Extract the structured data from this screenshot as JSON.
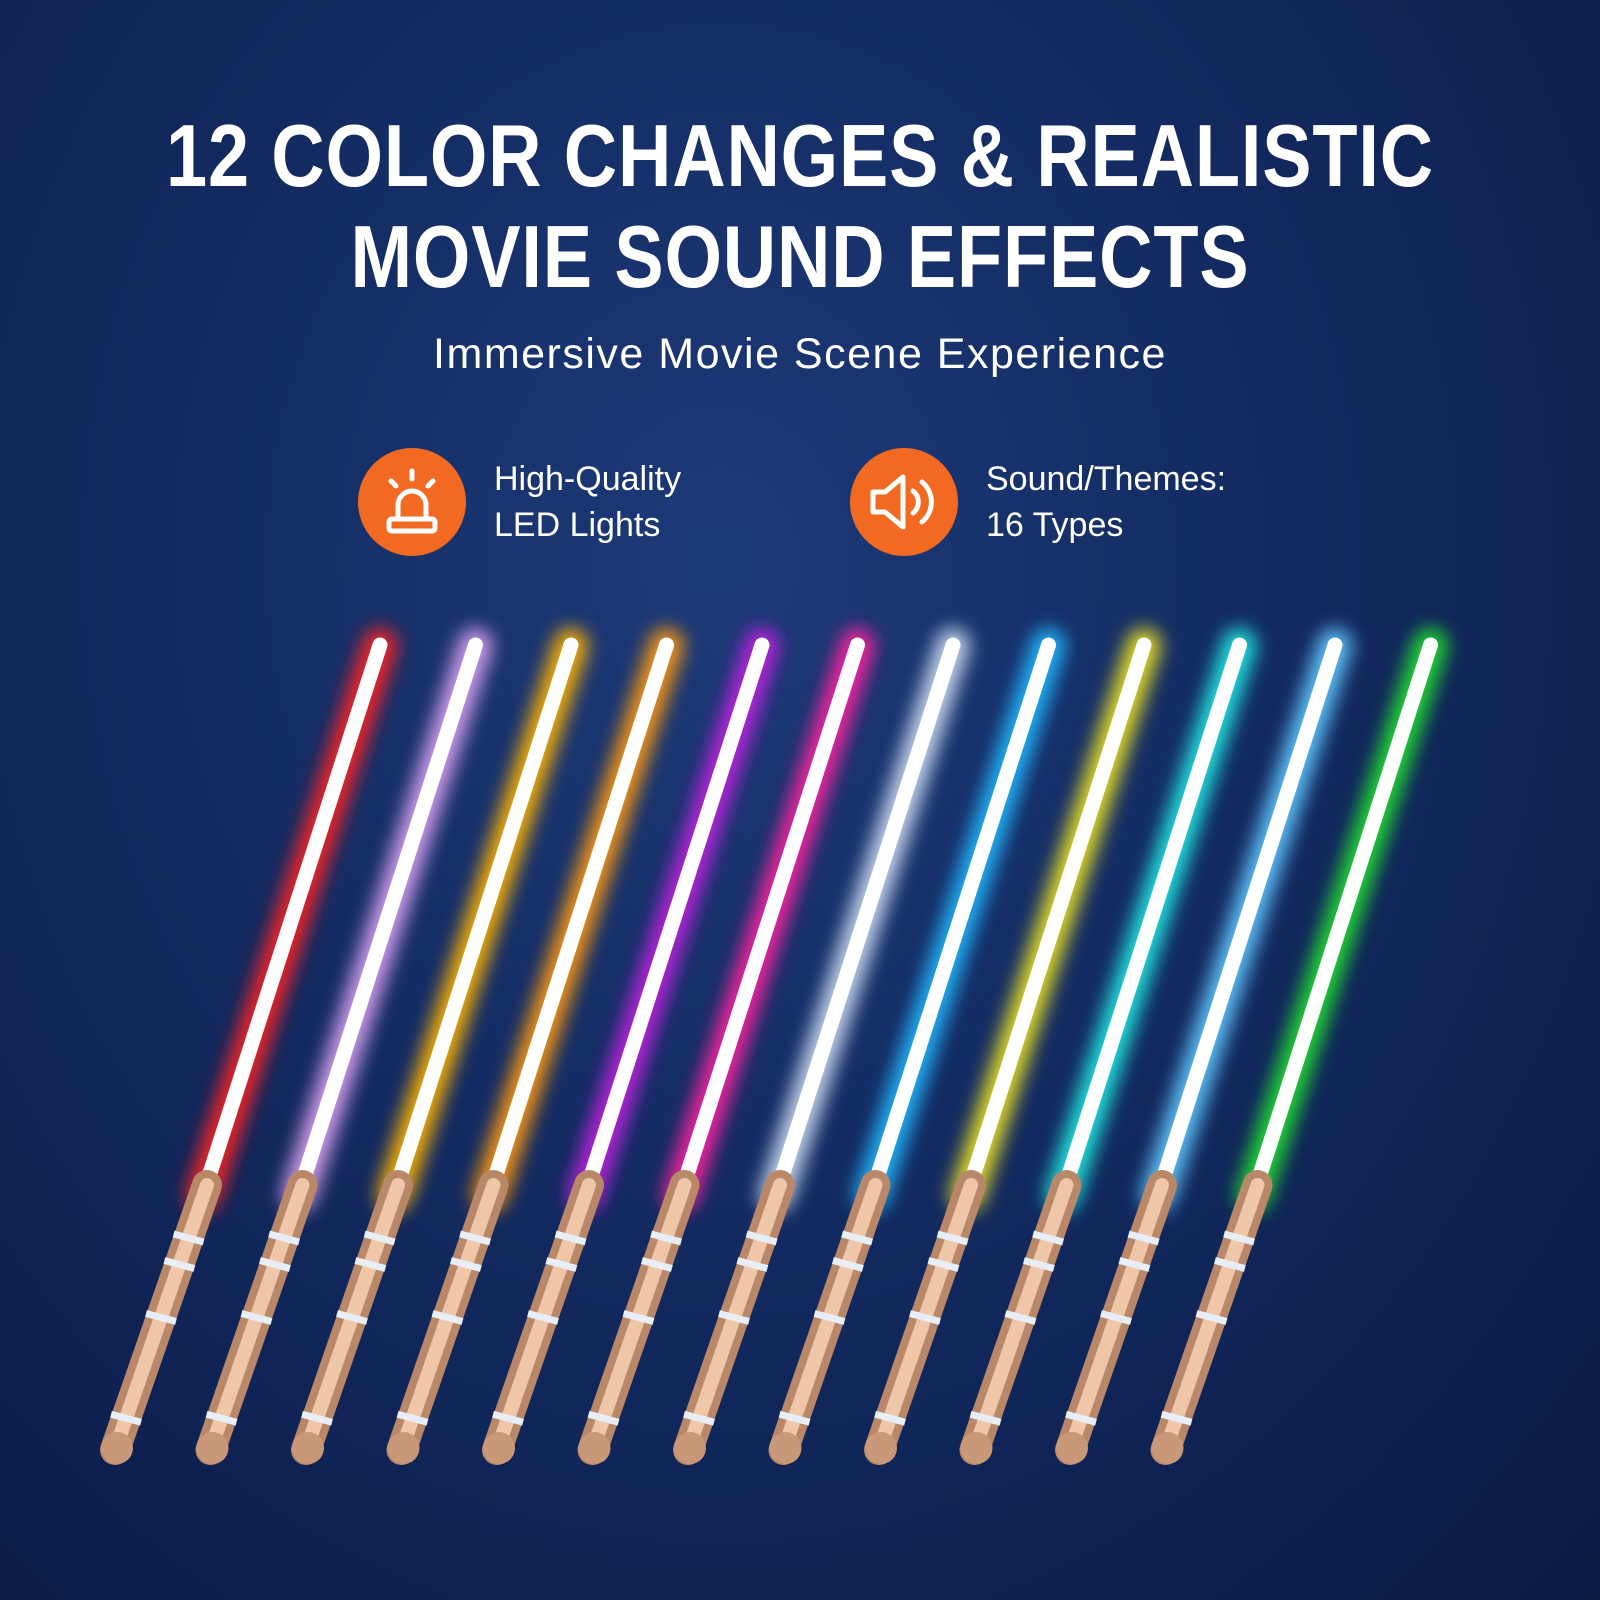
{
  "headline": {
    "line1": "12 COLOR CHANGES & REALISTIC",
    "line2": "MOVIE SOUND EFFECTS"
  },
  "subtitle": "Immersive Movie Scene Experience",
  "features": [
    {
      "icon": "siren-light-icon",
      "line1": "High-Quality",
      "line2": "LED Lights"
    },
    {
      "icon": "speaker-icon",
      "line1": "Sound/Themes:",
      "line2": "16 Types"
    }
  ],
  "colors": {
    "accent": "#f26a21",
    "background": "#142c63",
    "hilt": "#d9a98a"
  },
  "sabers": {
    "count": 12,
    "glow_colors": [
      "#ff2020",
      "#d9a0f0",
      "#ffb400",
      "#ff9a10",
      "#c020e0",
      "#ff20a0",
      "#c8d8f0",
      "#20b8ff",
      "#e8e020",
      "#20e8e0",
      "#60c8ff",
      "#20e030"
    ]
  }
}
